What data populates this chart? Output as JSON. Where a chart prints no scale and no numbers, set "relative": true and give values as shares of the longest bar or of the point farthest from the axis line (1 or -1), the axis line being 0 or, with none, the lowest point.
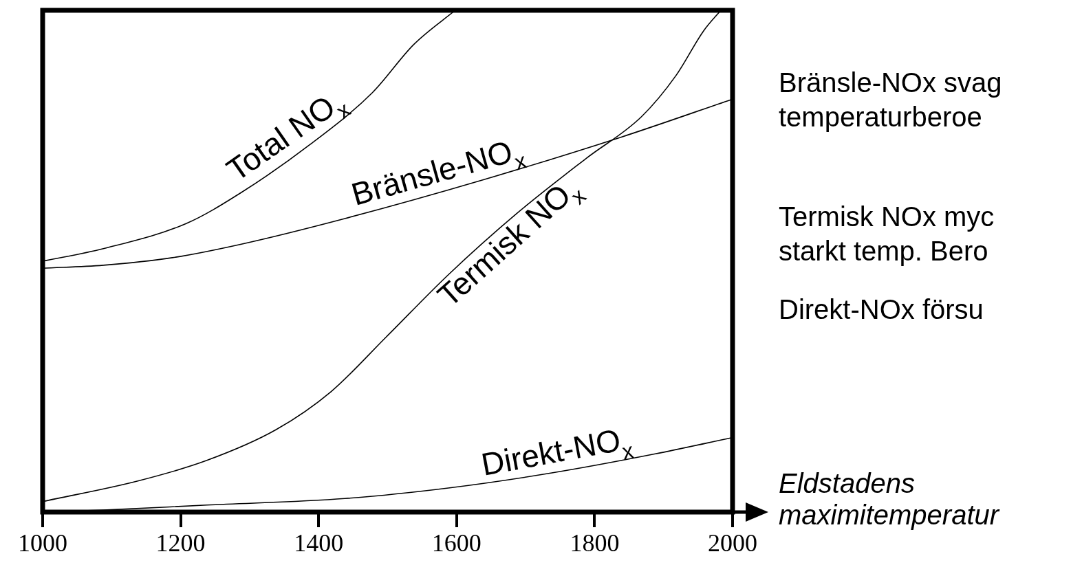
{
  "chart_data": {
    "type": "line",
    "relative": true,
    "xlabel": "Eldstadens maximitemperatur",
    "xlim": [
      1000,
      2000
    ],
    "xticks": [
      1000,
      1200,
      1400,
      1600,
      1800,
      2000
    ],
    "tick_labels": "x",
    "grid": false,
    "legend": false,
    "marker": "none",
    "line_style": "solid",
    "annotations": [
      "Bränsle-NOx svag\ntemperaturberoe",
      "Termisk NOx myc\nstarkt temp. Bero",
      "Direkt-NOx försu"
    ],
    "series": [
      {
        "name": "Total NO$_{x}$",
        "color": "#000000",
        "x": [
          1000,
          1088,
          1208,
          1288,
          1388,
          1478,
          1538,
          1598
        ],
        "values": [
          0.5,
          0.525,
          0.575,
          0.637,
          0.733,
          0.836,
          0.932,
          1.0
        ]
      },
      {
        "name": "Bränsle-NO$_{x}$",
        "color": "#000000",
        "x": [
          1000,
          1088,
          1188,
          1288,
          1438,
          1638,
          1838,
          1998
        ],
        "values": [
          0.486,
          0.492,
          0.507,
          0.534,
          0.585,
          0.662,
          0.747,
          0.822
        ]
      },
      {
        "name": "Termisk NO$_{x}$",
        "color": "#000000",
        "x": [
          1000,
          1138,
          1238,
          1338,
          1418,
          1498,
          1588,
          1688,
          1788,
          1868,
          1918,
          1958,
          1983
        ],
        "values": [
          0.021,
          0.062,
          0.103,
          0.164,
          0.24,
          0.349,
          0.473,
          0.596,
          0.705,
          0.788,
          0.87,
          0.959,
          1.0
        ]
      },
      {
        "name": "Direkt-NO$_{x}$",
        "color": "#000000",
        "x": [
          1000,
          1088,
          1238,
          1438,
          1588,
          1738,
          1888,
          1998
        ],
        "values": [
          0,
          0.004,
          0.014,
          0.027,
          0.048,
          0.078,
          0.116,
          0.148
        ]
      }
    ]
  }
}
